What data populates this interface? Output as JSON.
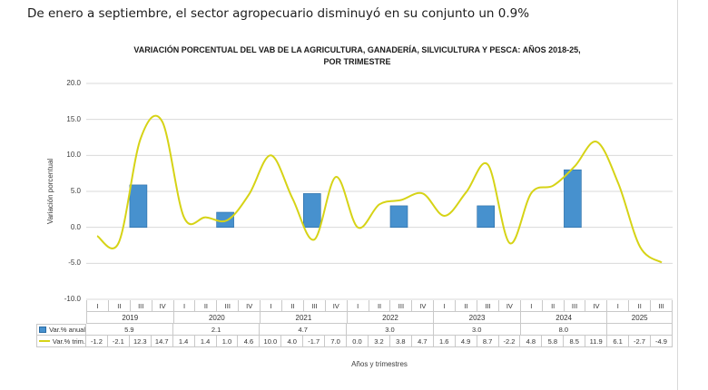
{
  "headline": "De enero a septiembre, el sector agropecuario disminuyó en su conjunto un 0.9%",
  "chart": {
    "title_line1": "VARIACIÓN PORCENTUAL DEL VAB DE LA AGRICULTURA, GANADERÍA, SILVICULTURA Y PESCA: AÑOS 2018-25,",
    "title_line2": "POR TRIMESTRE",
    "y_axis_title": "Variación porcentual",
    "x_axis_title": "Años y trimestres"
  },
  "chart_data": {
    "type": "bar+line",
    "title": "VARIACIÓN PORCENTUAL DEL VAB DE LA AGRICULTURA, GANADERÍA, SILVICULTURA Y PESCA: AÑOS 2018-25, POR TRIMESTRE",
    "xlabel": "Años y trimestres",
    "ylabel": "Variación porcentual",
    "ylim": [
      -10.0,
      20.0
    ],
    "ytick_step": 5.0,
    "grid": "horizontal",
    "legend_position": "data-table-left",
    "years": [
      "2019",
      "2020",
      "2021",
      "2022",
      "2023",
      "2024",
      "2025"
    ],
    "quarters_per_year": [
      4,
      4,
      4,
      4,
      4,
      4,
      3
    ],
    "quarter_roman": [
      "I",
      "II",
      "III",
      "IV"
    ],
    "series": [
      {
        "name": "Var.% anual",
        "type": "bar",
        "per": "year",
        "color": "#4791CE",
        "border": "#2a6ca5",
        "values": [
          5.9,
          2.1,
          4.7,
          3.0,
          3.0,
          8.0,
          null
        ]
      },
      {
        "name": "Var.% trim.",
        "type": "line",
        "smooth": true,
        "per": "quarter",
        "color": "#d6d316",
        "values": [
          -1.2,
          -2.1,
          12.3,
          14.7,
          1.4,
          1.4,
          1.0,
          4.6,
          10.0,
          4.0,
          -1.7,
          7.0,
          0.0,
          3.2,
          3.8,
          4.7,
          1.6,
          4.9,
          8.7,
          -2.2,
          4.8,
          5.8,
          8.5,
          11.9,
          6.1,
          -2.7,
          -4.9
        ]
      }
    ]
  }
}
